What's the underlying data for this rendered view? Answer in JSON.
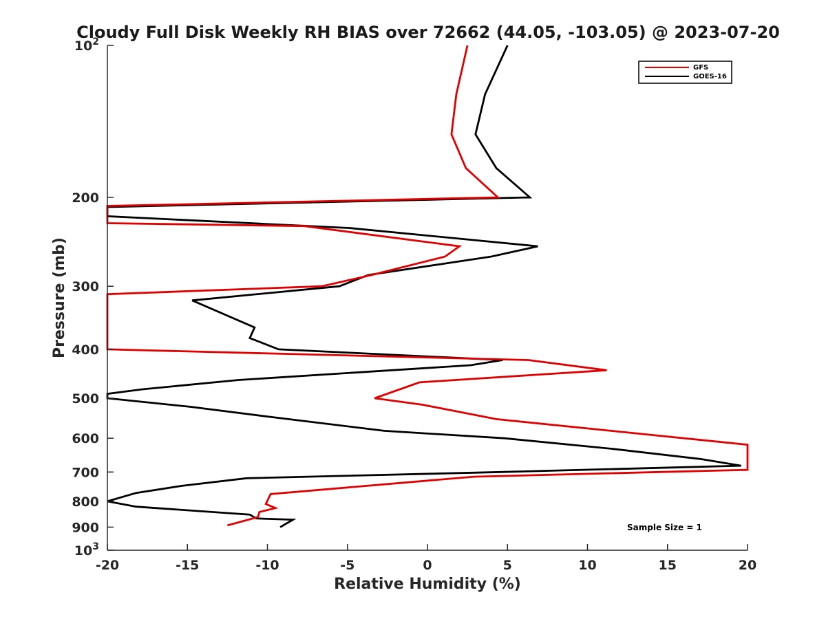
{
  "chart_data": {
    "type": "line",
    "title": "Cloudy Full Disk Weekly RH BIAS over 72662 (44.05, -103.05) @ 2023-07-20",
    "xlabel": "Relative Humidity (%)",
    "ylabel": "Pressure (mb)",
    "xlim": [
      -20,
      20
    ],
    "ylim": [
      100,
      1000
    ],
    "y_scale": "log",
    "y_reversed": true,
    "grid": false,
    "legend_position": "top-right",
    "x_ticks": [
      "-20",
      "-15",
      "-10",
      "-5",
      "0",
      "5",
      "10",
      "15",
      "20"
    ],
    "y_ticks": [
      {
        "value": 100,
        "base": "10",
        "exp": "2"
      },
      {
        "value": 200,
        "base": "200",
        "exp": ""
      },
      {
        "value": 300,
        "base": "300",
        "exp": ""
      },
      {
        "value": 400,
        "base": "400",
        "exp": ""
      },
      {
        "value": 500,
        "base": "500",
        "exp": ""
      },
      {
        "value": 600,
        "base": "600",
        "exp": ""
      },
      {
        "value": 700,
        "base": "700",
        "exp": ""
      },
      {
        "value": 800,
        "base": "800",
        "exp": ""
      },
      {
        "value": 900,
        "base": "900",
        "exp": ""
      },
      {
        "value": 1000,
        "base": "10",
        "exp": "3"
      }
    ],
    "series": [
      {
        "name": "GFS",
        "color": "#e00000",
        "points": [
          {
            "x": 2.5,
            "y": 100
          },
          {
            "x": 1.8,
            "y": 125
          },
          {
            "x": 1.5,
            "y": 150
          },
          {
            "x": 2.4,
            "y": 175
          },
          {
            "x": 4.4,
            "y": 200
          },
          {
            "x": -20.0,
            "y": 208
          },
          {
            "x": -20.0,
            "y": 225
          },
          {
            "x": -7.7,
            "y": 228
          },
          {
            "x": 2.0,
            "y": 250
          },
          {
            "x": 1.1,
            "y": 262
          },
          {
            "x": -3.5,
            "y": 285
          },
          {
            "x": -6.6,
            "y": 300
          },
          {
            "x": -20.0,
            "y": 311
          },
          {
            "x": -20.0,
            "y": 400
          },
          {
            "x": 6.3,
            "y": 420
          },
          {
            "x": 11.2,
            "y": 440
          },
          {
            "x": -0.5,
            "y": 465
          },
          {
            "x": -3.3,
            "y": 500
          },
          {
            "x": -0.3,
            "y": 515
          },
          {
            "x": 4.3,
            "y": 550
          },
          {
            "x": 20.0,
            "y": 618
          },
          {
            "x": 20.0,
            "y": 693
          },
          {
            "x": 2.9,
            "y": 715
          },
          {
            "x": -9.8,
            "y": 774
          },
          {
            "x": -10.1,
            "y": 810
          },
          {
            "x": -9.5,
            "y": 825
          },
          {
            "x": -10.5,
            "y": 840
          },
          {
            "x": -10.6,
            "y": 860
          },
          {
            "x": -12.5,
            "y": 893
          }
        ]
      },
      {
        "name": "GOES-16",
        "color": "#000000",
        "points": [
          {
            "x": 5.0,
            "y": 100
          },
          {
            "x": 3.6,
            "y": 125
          },
          {
            "x": 3.0,
            "y": 150
          },
          {
            "x": 4.3,
            "y": 175
          },
          {
            "x": 6.4,
            "y": 200
          },
          {
            "x": -20.0,
            "y": 209
          },
          {
            "x": -20.0,
            "y": 218
          },
          {
            "x": -4.9,
            "y": 230
          },
          {
            "x": 6.9,
            "y": 250
          },
          {
            "x": 4.0,
            "y": 262
          },
          {
            "x": -3.7,
            "y": 285
          },
          {
            "x": -5.5,
            "y": 300
          },
          {
            "x": -14.7,
            "y": 320
          },
          {
            "x": -10.8,
            "y": 362
          },
          {
            "x": -11.1,
            "y": 380
          },
          {
            "x": -9.3,
            "y": 400
          },
          {
            "x": 4.7,
            "y": 420
          },
          {
            "x": 2.7,
            "y": 430
          },
          {
            "x": -11.8,
            "y": 460
          },
          {
            "x": -17.8,
            "y": 480
          },
          {
            "x": -20.0,
            "y": 490
          },
          {
            "x": -20.0,
            "y": 500
          },
          {
            "x": -14.8,
            "y": 520
          },
          {
            "x": -9.7,
            "y": 545
          },
          {
            "x": -2.7,
            "y": 580
          },
          {
            "x": 4.8,
            "y": 600
          },
          {
            "x": 11.6,
            "y": 630
          },
          {
            "x": 17.1,
            "y": 660
          },
          {
            "x": 19.6,
            "y": 680
          },
          {
            "x": 4.6,
            "y": 700
          },
          {
            "x": -11.3,
            "y": 720
          },
          {
            "x": -15.3,
            "y": 745
          },
          {
            "x": -18.2,
            "y": 770
          },
          {
            "x": -20.0,
            "y": 800
          },
          {
            "x": -18.2,
            "y": 820
          },
          {
            "x": -11.1,
            "y": 850
          },
          {
            "x": -10.7,
            "y": 865
          },
          {
            "x": -8.4,
            "y": 870
          },
          {
            "x": -9.2,
            "y": 900
          }
        ]
      }
    ],
    "annotation": "Sample Size = 1"
  }
}
